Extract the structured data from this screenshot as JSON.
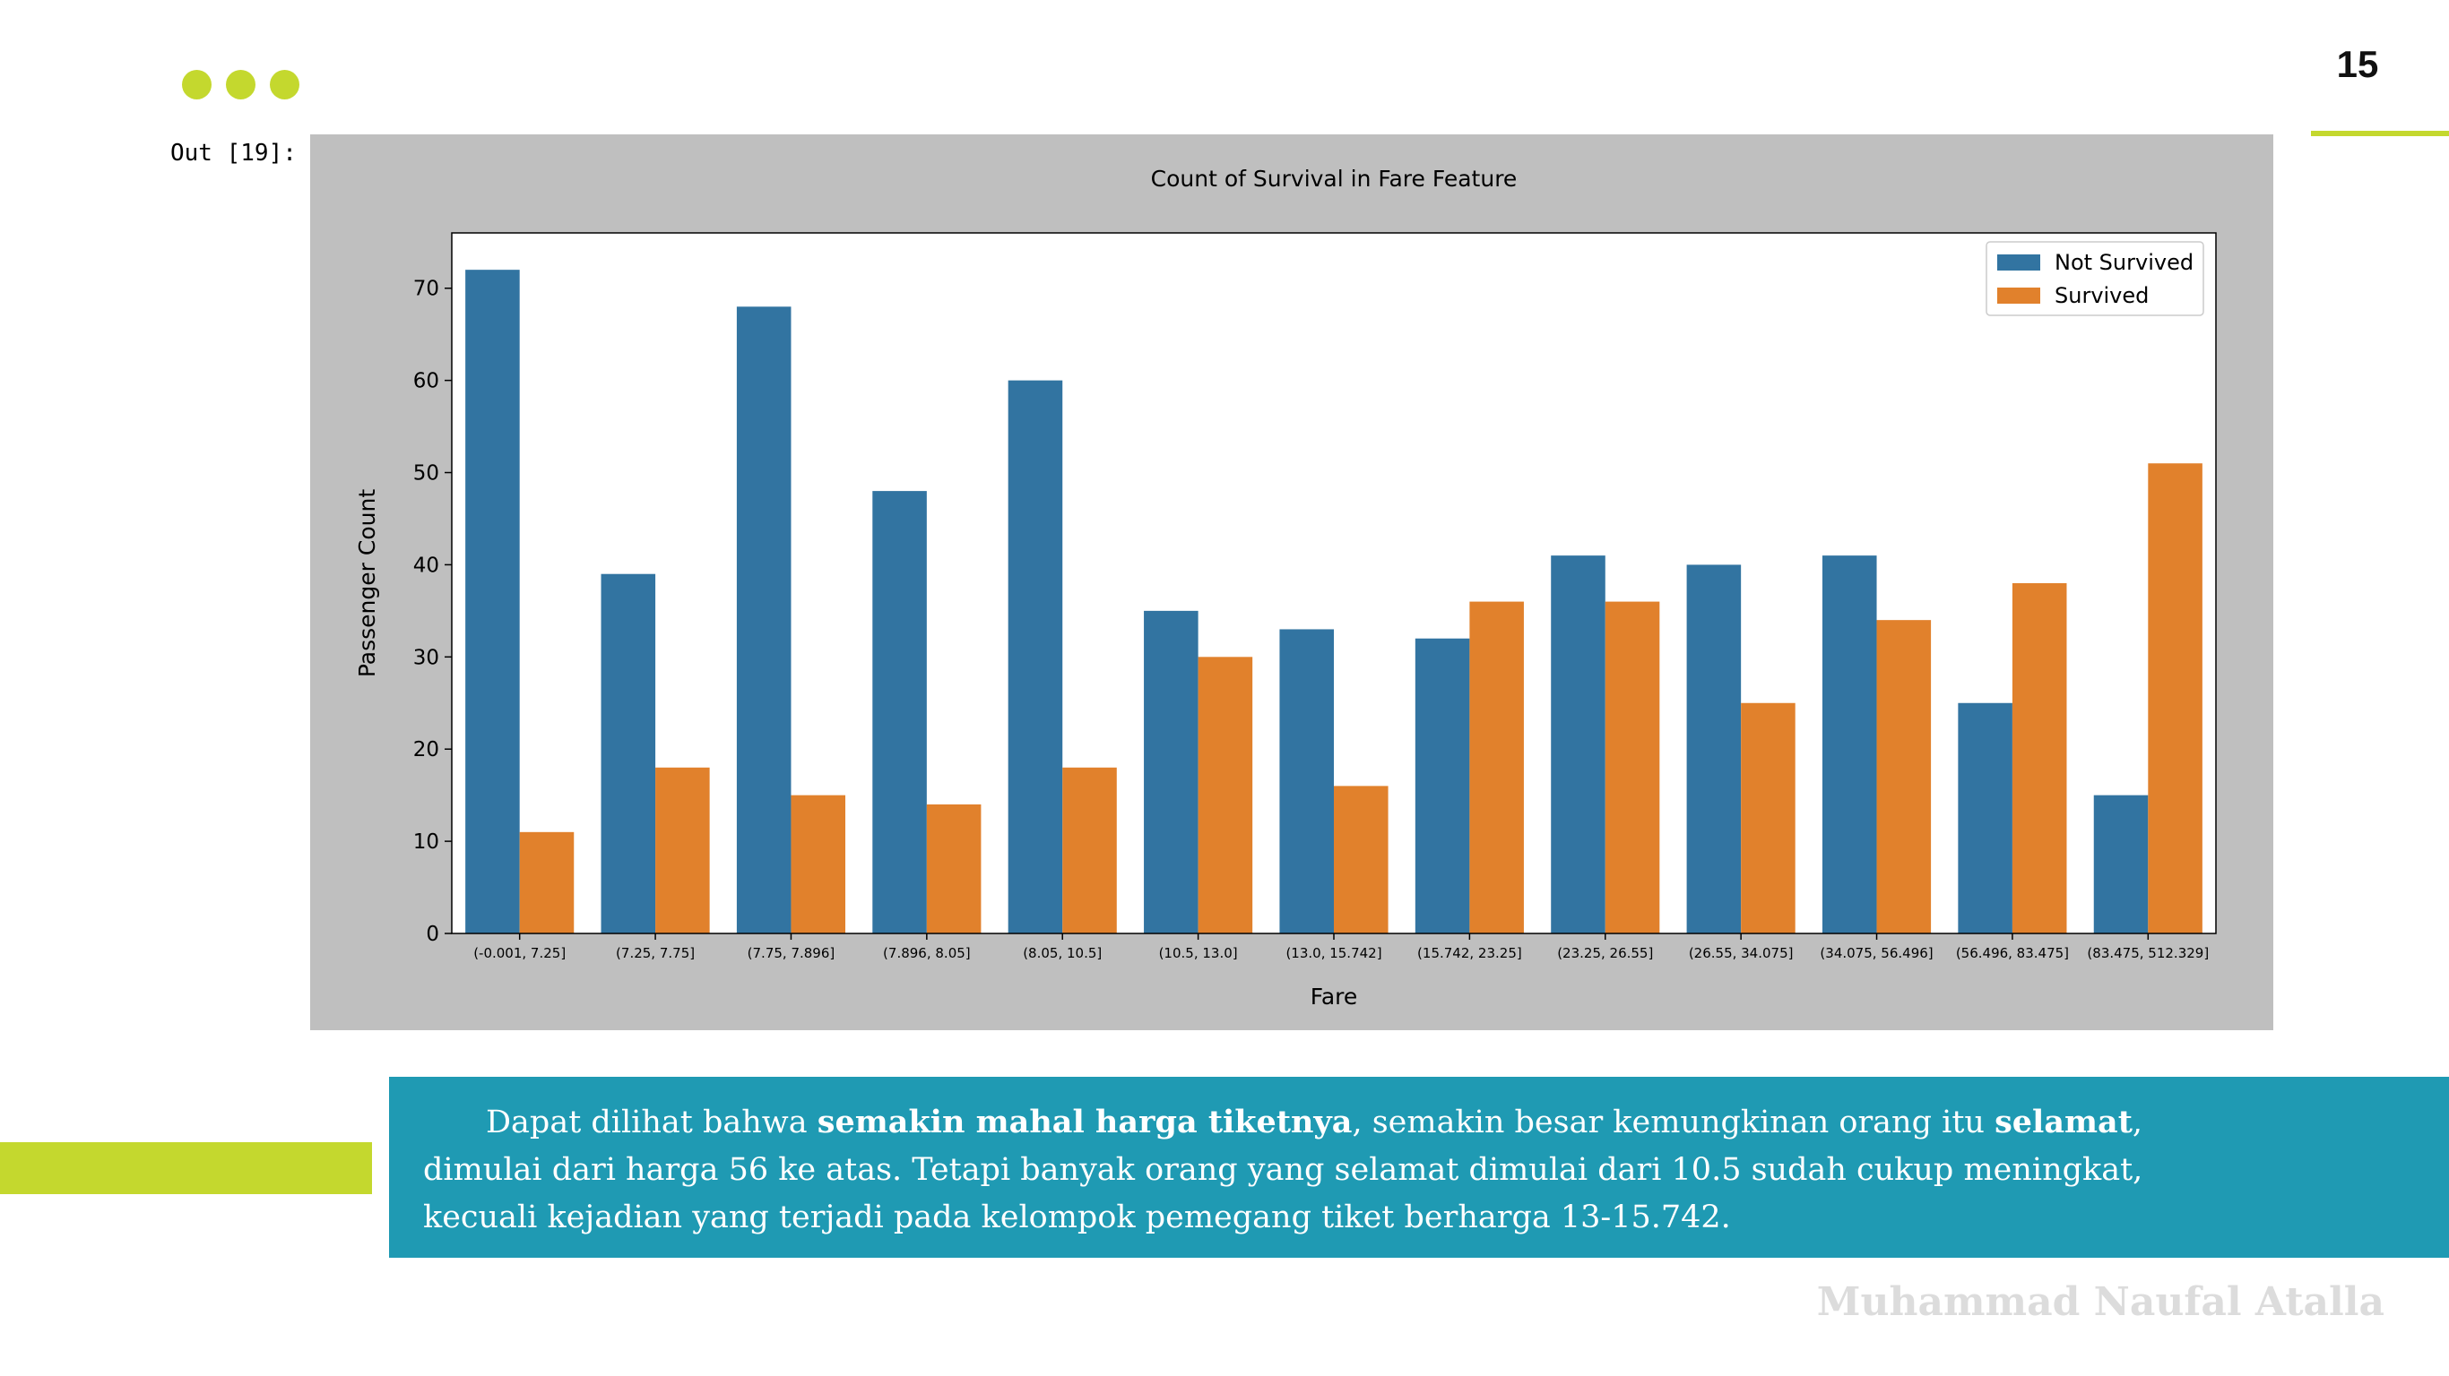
{
  "slide": {
    "page_number": "15",
    "out_label": "Out [19]:",
    "author": "Muhammad Naufal Atalla"
  },
  "colors": {
    "accent": "#c4d82e",
    "box": "#1f9ab3",
    "not_survived": "#3274a1",
    "survived": "#e1812c",
    "panel": "#bfbfbf"
  },
  "paragraph": {
    "t1": "Dapat dilihat bahwa ",
    "b1": "semakin mahal harga tiketnya",
    "t2": ", semakin besar kemungkinan orang itu ",
    "b2": "selamat",
    "t3": ", dimulai dari harga 56 ke atas. Tetapi banyak orang yang selamat dimulai dari 10.5 sudah cukup meningkat, kecuali kejadian yang terjadi pada kelompok pemegang tiket berharga 13-15.742."
  },
  "chart_data": {
    "type": "bar",
    "title": "Count of Survival in Fare Feature",
    "xlabel": "Fare",
    "ylabel": "Passenger Count",
    "ylim": [
      0,
      76
    ],
    "yticks": [
      0,
      10,
      20,
      30,
      40,
      50,
      60,
      70
    ],
    "legend_position": "top-right",
    "grid": false,
    "categories": [
      "(-0.001, 7.25]",
      "(7.25, 7.75]",
      "(7.75, 7.896]",
      "(7.896, 8.05]",
      "(8.05, 10.5]",
      "(10.5, 13.0]",
      "(13.0, 15.742]",
      "(15.742, 23.25]",
      "(23.25, 26.55]",
      "(26.55, 34.075]",
      "(34.075, 56.496]",
      "(56.496, 83.475]",
      "(83.475, 512.329]"
    ],
    "series": [
      {
        "name": "Not Survived",
        "color": "#3274a1",
        "values": [
          72,
          39,
          68,
          48,
          60,
          35,
          33,
          32,
          41,
          40,
          41,
          25,
          15
        ]
      },
      {
        "name": "Survived",
        "color": "#e1812c",
        "values": [
          11,
          18,
          15,
          14,
          18,
          30,
          16,
          36,
          36,
          25,
          34,
          38,
          51
        ]
      }
    ]
  }
}
